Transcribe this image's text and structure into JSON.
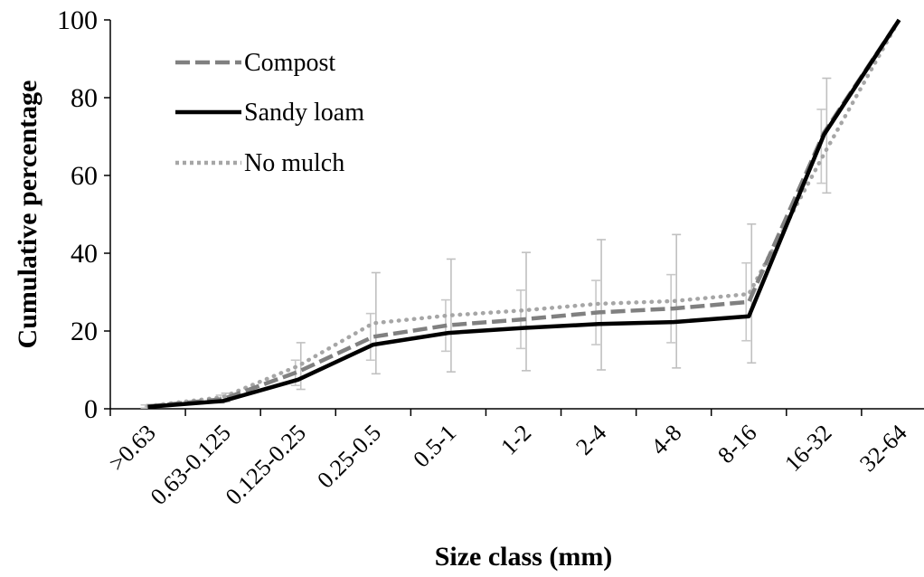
{
  "chart_data": {
    "type": "line",
    "xlabel": "Size class (mm)",
    "ylabel": "Cumulative percentage",
    "ylim": [
      0,
      100
    ],
    "yticks": [
      0,
      20,
      40,
      60,
      80,
      100
    ],
    "categories": [
      ">0.63",
      "0.63-0.125",
      "0.125-0.25",
      "0.25-0.5",
      "0.5-1",
      "1-2",
      "2-4",
      "4-8",
      "8-16",
      "16-32",
      "32-64"
    ],
    "grid": false,
    "legend_position": "top-left",
    "series": [
      {
        "name": "Compost",
        "style": "dashed",
        "color": "#808080",
        "values": [
          0.6,
          2.5,
          9.5,
          18.5,
          21.5,
          23.0,
          24.8,
          25.8,
          27.5,
          71.0,
          100
        ],
        "error_low": [
          0.2,
          1.5,
          6.0,
          12.5,
          14.8,
          15.5,
          16.5,
          17.0,
          17.5,
          58.0,
          100
        ],
        "error_high": [
          1.0,
          3.5,
          12.5,
          24.5,
          28.0,
          30.5,
          33.0,
          34.5,
          37.5,
          77.0,
          100
        ]
      },
      {
        "name": "Sandy loam",
        "style": "solid",
        "color": "#000000",
        "values": [
          0.5,
          2.0,
          7.5,
          16.5,
          19.5,
          20.8,
          21.8,
          22.3,
          23.8,
          70.5,
          100
        ],
        "error_low": [],
        "error_high": []
      },
      {
        "name": "No mulch",
        "style": "dotted",
        "color": "#a6a6a6",
        "values": [
          0.7,
          3.0,
          11.0,
          22.0,
          24.0,
          25.3,
          27.0,
          27.7,
          29.5,
          65.5,
          100
        ],
        "error_low": [
          0.3,
          1.8,
          5.0,
          9.0,
          9.5,
          9.8,
          10.0,
          10.5,
          11.8,
          55.5,
          100
        ],
        "error_high": [
          1.1,
          4.0,
          17.0,
          35.0,
          38.5,
          40.2,
          43.5,
          44.8,
          47.5,
          85.0,
          100
        ]
      }
    ]
  }
}
